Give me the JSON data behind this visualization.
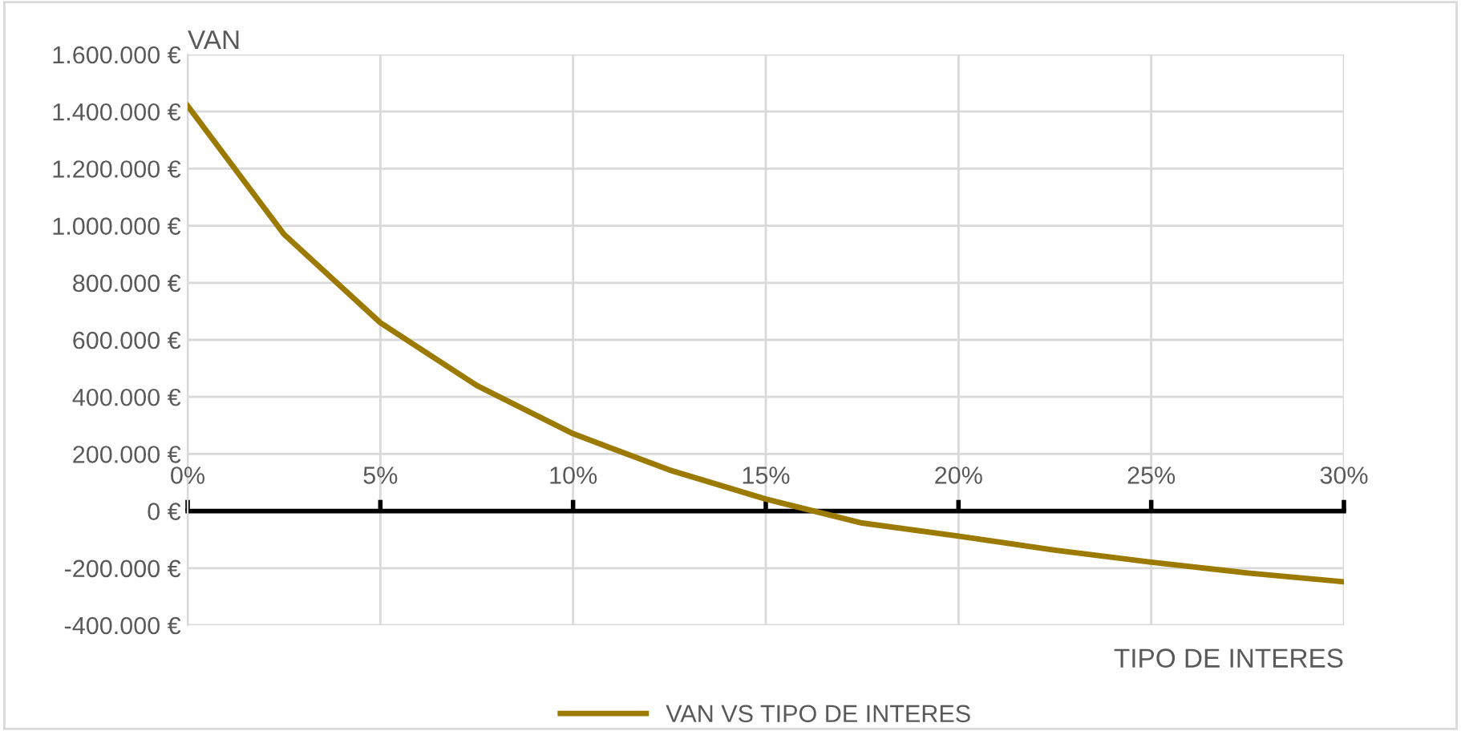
{
  "chart_data": {
    "type": "line",
    "x": [
      0,
      2.5,
      5,
      7.5,
      10,
      12.5,
      15,
      17.5,
      20,
      22.5,
      25,
      27.5,
      30
    ],
    "series": [
      {
        "name": "VAN VS TIPO DE INTERES",
        "color": "#9c7a00",
        "values": [
          1420000,
          970000,
          660000,
          440000,
          271000,
          144000,
          42000,
          -42000,
          -88000,
          -137000,
          -179000,
          -217000,
          -248000
        ]
      }
    ],
    "xlabel": "TIPO DE INTERES",
    "ylabel": "VAN",
    "xlim": [
      0,
      30
    ],
    "xticks": [
      {
        "value": 0,
        "label": "0%"
      },
      {
        "value": 5,
        "label": "5%"
      },
      {
        "value": 10,
        "label": "10%"
      },
      {
        "value": 15,
        "label": "15%"
      },
      {
        "value": 20,
        "label": "20%"
      },
      {
        "value": 25,
        "label": "25%"
      },
      {
        "value": 30,
        "label": "30%"
      }
    ],
    "ylim": [
      -400000,
      1600000
    ],
    "yticks": [
      {
        "value": -400000,
        "label": "-400.000 €"
      },
      {
        "value": -200000,
        "label": "-200.000 €"
      },
      {
        "value": 0,
        "label": "0 €"
      },
      {
        "value": 200000,
        "label": "200.000 €"
      },
      {
        "value": 400000,
        "label": "400.000 €"
      },
      {
        "value": 600000,
        "label": "600.000 €"
      },
      {
        "value": 800000,
        "label": "800.000 €"
      },
      {
        "value": 1000000,
        "label": "1.000.000 €"
      },
      {
        "value": 1200000,
        "label": "1.200.000 €"
      },
      {
        "value": 1400000,
        "label": "1.400.000 €"
      },
      {
        "value": 1600000,
        "label": "1.600.000 €"
      }
    ],
    "grid": true,
    "legend": "bottom",
    "marker": "none",
    "line_style": "solid"
  }
}
